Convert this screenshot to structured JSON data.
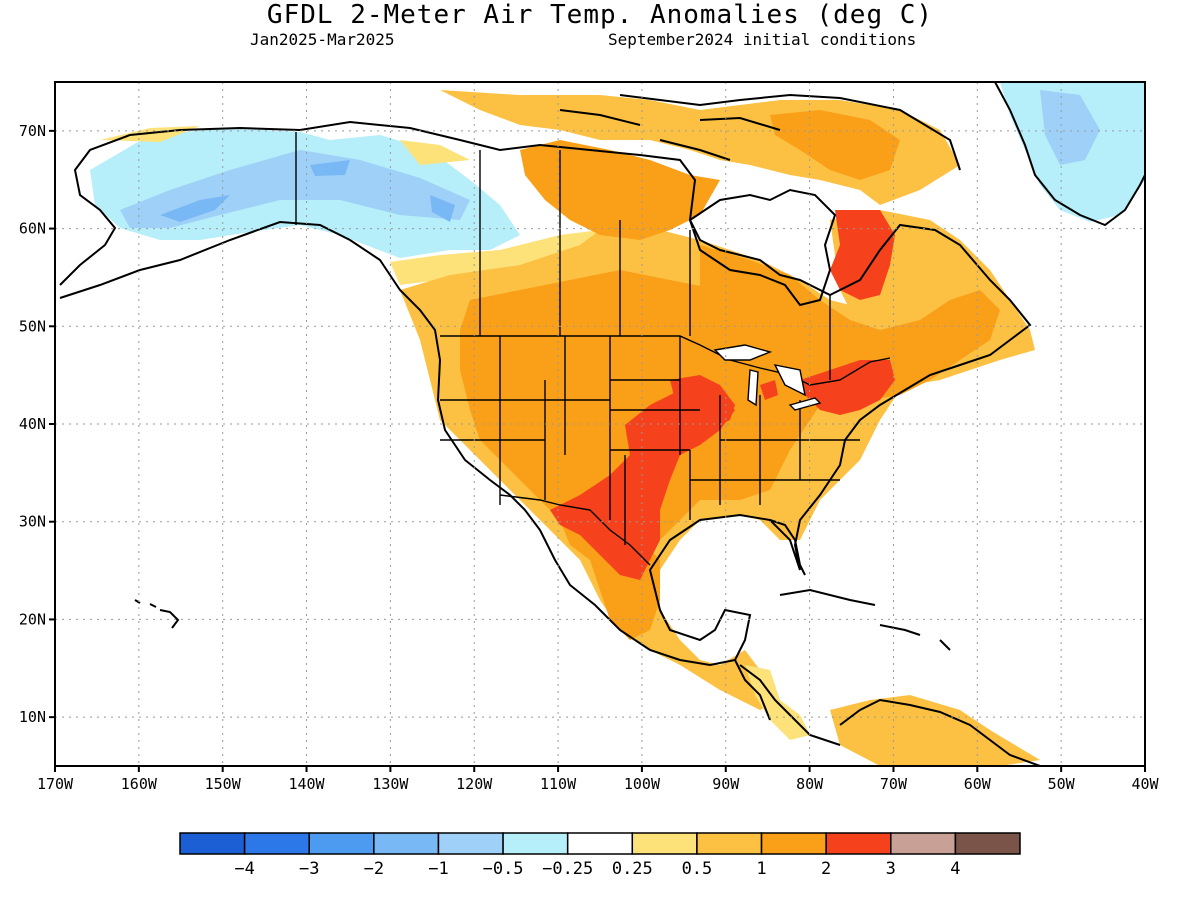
{
  "header": {
    "title": "GFDL 2-Meter Air Temp. Anomalies (deg C)",
    "period": "Jan2025-Mar2025",
    "conditions": "September2024 initial conditions"
  },
  "axes": {
    "lon_ticks": [
      "170W",
      "160W",
      "150W",
      "140W",
      "130W",
      "120W",
      "110W",
      "100W",
      "90W",
      "80W",
      "70W",
      "60W",
      "50W",
      "40W"
    ],
    "lat_ticks": [
      "10N",
      "20N",
      "30N",
      "40N",
      "50N",
      "60N",
      "70N"
    ],
    "lon_range": [
      -170,
      -40
    ],
    "lat_range": [
      5,
      75
    ],
    "grid": "dotted"
  },
  "colorbar": {
    "labels": [
      "-4",
      "-3",
      "-2",
      "-1",
      "-0.5",
      "-0.25",
      "0.25",
      "0.5",
      "1",
      "2",
      "3",
      "4"
    ],
    "colors": [
      "#1c5fd4",
      "#2c78e8",
      "#4c9bf0",
      "#78b8f4",
      "#9fd0f8",
      "#b6eefa",
      "#ffffff",
      "#fde27a",
      "#fcc142",
      "#fa9f18",
      "#f5421c",
      "#c8a096",
      "#7a5448"
    ]
  },
  "anomaly_colors": {
    "land_background": "#ffffff",
    "cold_light": "#b6eefa",
    "cold_mid": "#9fd0f8",
    "cold_strong": "#78b8f4",
    "warm_light": "#fde27a",
    "warm": "#fcc142",
    "warm_mid": "#fa9f18",
    "warm_strong": "#f5421c"
  }
}
